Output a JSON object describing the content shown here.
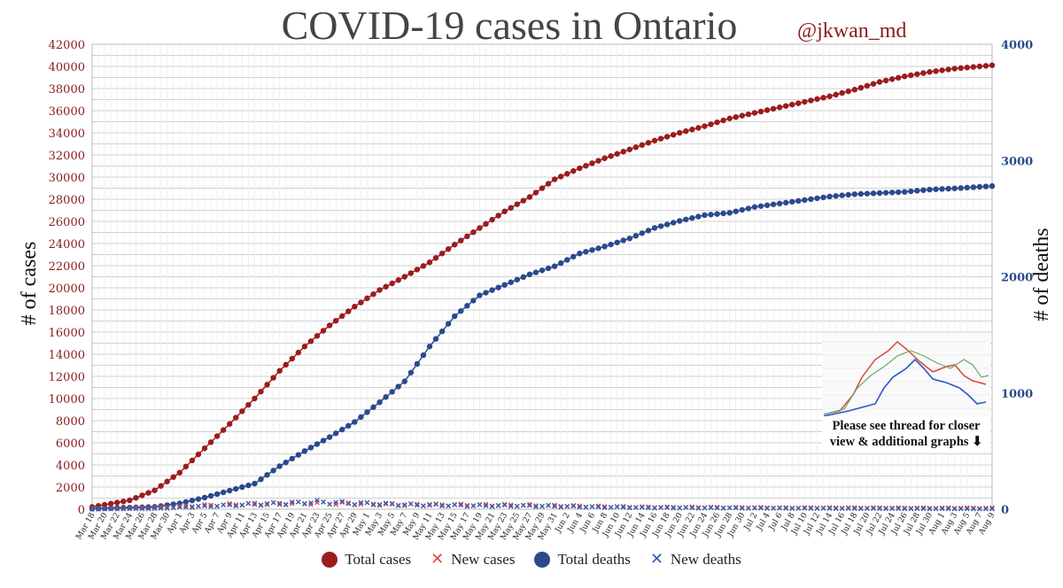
{
  "title": "COVID-19 cases in Ontario",
  "handle": "@jkwan_md",
  "inset_note": {
    "line1": "Please see thread for closer",
    "line2": "view & additional graphs ⬇"
  },
  "legend": [
    {
      "label": "Total cases",
      "marker": "dot",
      "color": "#9b1c1c"
    },
    {
      "label": "New cases",
      "marker": "x",
      "color": "#e2493f"
    },
    {
      "label": "Total deaths",
      "marker": "dot",
      "color": "#2a4a8c"
    },
    {
      "label": "New deaths",
      "marker": "x",
      "color": "#2f5fb8"
    }
  ],
  "chart_data": {
    "type": "line",
    "y_left_label": "# of cases",
    "y_right_label": "# of deaths",
    "y_left_lim": [
      0,
      42000
    ],
    "y_right_lim": [
      0,
      4000
    ],
    "y_left_ticks": [
      0,
      2000,
      4000,
      6000,
      8000,
      10000,
      12000,
      14000,
      16000,
      18000,
      20000,
      22000,
      24000,
      26000,
      28000,
      30000,
      32000,
      34000,
      36000,
      38000,
      40000,
      42000
    ],
    "y_right_ticks": [
      0,
      1000,
      2000,
      3000,
      4000
    ],
    "x_tick_labels": [
      "Mar 18",
      "Mar 20",
      "Mar 22",
      "Mar 24",
      "Mar 26",
      "Mar 28",
      "Mar 30",
      "Apr 1",
      "Apr 3",
      "Apr 5",
      "Apr 7",
      "Apr 9",
      "Apr 11",
      "Apr 13",
      "Apr 15",
      "Apr 17",
      "Apr 19",
      "Apr 21",
      "Apr 23",
      "Apr 25",
      "Apr 27",
      "Apr 29",
      "May 1",
      "May 3",
      "May 5",
      "May 7",
      "May 9",
      "May 11",
      "May 13",
      "May 15",
      "May 17",
      "May 19",
      "May 21",
      "May 23",
      "May 25",
      "May 27",
      "May 29",
      "May 31",
      "Jun 2",
      "Jun 4",
      "Jun 6",
      "Jun 8",
      "Jun 10",
      "Jun 12",
      "Jun 14",
      "Jun 16",
      "Jun 18",
      "Jun 20",
      "Jun 22",
      "Jun 24",
      "Jun 26",
      "Jun 28",
      "Jun 30",
      "Jul 2",
      "Jul 4",
      "Jul 6",
      "Jul 8",
      "Jul 10",
      "Jul 12",
      "Jul 14",
      "Jul 16",
      "Jul 18",
      "Jul 20",
      "Jul 22",
      "Jul 24",
      "Jul 26",
      "Jul 28",
      "Jul 30",
      "Aug 1",
      "Aug 3",
      "Aug 5",
      "Aug 7",
      "Aug 9"
    ],
    "series": [
      {
        "name": "Total cases",
        "axis": "left",
        "color": "#9b1c1c",
        "anchors": [
          [
            0,
            200
          ],
          [
            6,
            800
          ],
          [
            10,
            1700
          ],
          [
            14,
            3300
          ],
          [
            18,
            5500
          ],
          [
            22,
            7700
          ],
          [
            26,
            10000
          ],
          [
            30,
            12500
          ],
          [
            34,
            14700
          ],
          [
            38,
            16600
          ],
          [
            42,
            18300
          ],
          [
            46,
            19800
          ],
          [
            50,
            21000
          ],
          [
            54,
            22300
          ],
          [
            58,
            23900
          ],
          [
            62,
            25400
          ],
          [
            66,
            26900
          ],
          [
            70,
            28200
          ],
          [
            74,
            29800
          ],
          [
            78,
            30800
          ],
          [
            82,
            31700
          ],
          [
            86,
            32500
          ],
          [
            90,
            33300
          ],
          [
            94,
            34000
          ],
          [
            98,
            34600
          ],
          [
            102,
            35300
          ],
          [
            106,
            35800
          ],
          [
            110,
            36300
          ],
          [
            114,
            36800
          ],
          [
            118,
            37300
          ],
          [
            122,
            37900
          ],
          [
            126,
            38600
          ],
          [
            130,
            39100
          ],
          [
            134,
            39500
          ],
          [
            138,
            39800
          ],
          [
            144,
            40100
          ]
        ]
      },
      {
        "name": "Total deaths",
        "axis": "right",
        "color": "#2a4a8c",
        "anchors": [
          [
            0,
            5
          ],
          [
            10,
            20
          ],
          [
            14,
            50
          ],
          [
            18,
            100
          ],
          [
            22,
            160
          ],
          [
            26,
            220
          ],
          [
            30,
            370
          ],
          [
            34,
            500
          ],
          [
            38,
            620
          ],
          [
            42,
            750
          ],
          [
            46,
            920
          ],
          [
            50,
            1100
          ],
          [
            54,
            1400
          ],
          [
            58,
            1660
          ],
          [
            62,
            1840
          ],
          [
            66,
            1930
          ],
          [
            70,
            2020
          ],
          [
            74,
            2090
          ],
          [
            78,
            2200
          ],
          [
            82,
            2260
          ],
          [
            86,
            2330
          ],
          [
            90,
            2420
          ],
          [
            94,
            2480
          ],
          [
            98,
            2530
          ],
          [
            102,
            2550
          ],
          [
            106,
            2600
          ],
          [
            110,
            2630
          ],
          [
            114,
            2660
          ],
          [
            118,
            2690
          ],
          [
            122,
            2710
          ],
          [
            126,
            2720
          ],
          [
            130,
            2730
          ],
          [
            134,
            2750
          ],
          [
            138,
            2760
          ],
          [
            144,
            2780
          ]
        ]
      },
      {
        "name": "New cases",
        "axis": "left",
        "color": "#e2493f",
        "anchors": [
          [
            0,
            50
          ],
          [
            10,
            150
          ],
          [
            16,
            300
          ],
          [
            24,
            450
          ],
          [
            30,
            500
          ],
          [
            36,
            550
          ],
          [
            44,
            480
          ],
          [
            50,
            400
          ],
          [
            60,
            380
          ],
          [
            70,
            350
          ],
          [
            80,
            250
          ],
          [
            90,
            180
          ],
          [
            100,
            160
          ],
          [
            110,
            130
          ],
          [
            120,
            120
          ],
          [
            130,
            110
          ],
          [
            144,
            100
          ]
        ]
      },
      {
        "name": "New deaths",
        "axis": "left",
        "color": "#2f5fb8",
        "anchors": [
          [
            0,
            0
          ],
          [
            10,
            50
          ],
          [
            16,
            200
          ],
          [
            24,
            400
          ],
          [
            30,
            500
          ],
          [
            36,
            650
          ],
          [
            44,
            500
          ],
          [
            50,
            400
          ],
          [
            60,
            330
          ],
          [
            70,
            300
          ],
          [
            80,
            200
          ],
          [
            90,
            130
          ],
          [
            100,
            110
          ],
          [
            110,
            80
          ],
          [
            120,
            60
          ],
          [
            130,
            40
          ],
          [
            144,
            20
          ]
        ]
      }
    ]
  }
}
